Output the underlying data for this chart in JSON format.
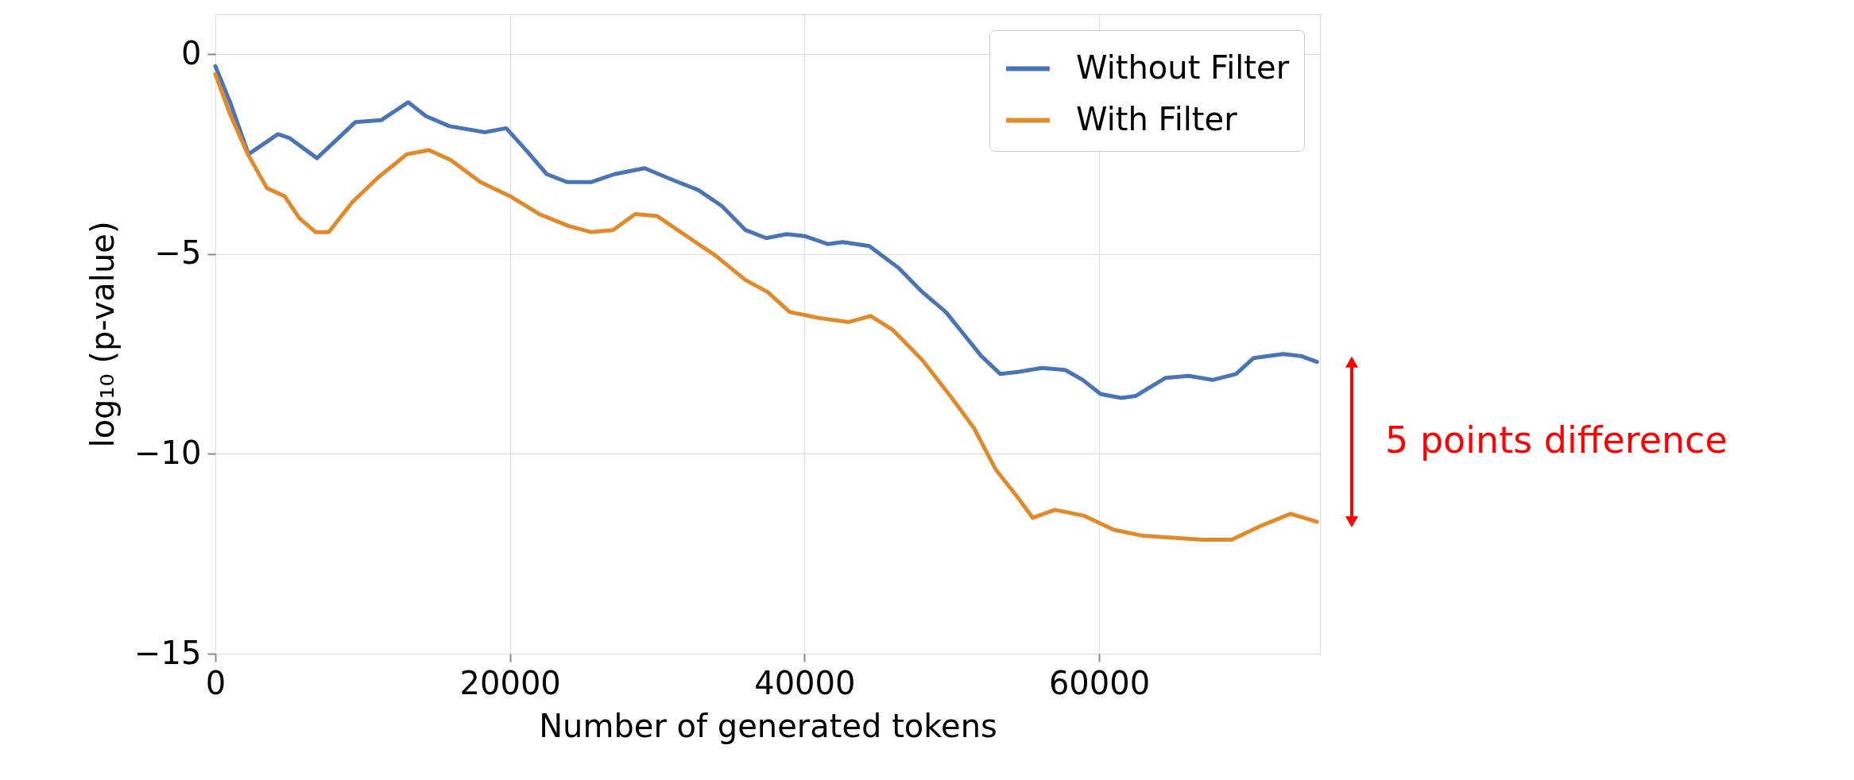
{
  "chart_data": {
    "type": "line",
    "xlabel": "Number of generated tokens",
    "ylabel": "log₁₀ (p-value)",
    "xlim": [
      0,
      75000
    ],
    "xticks": [
      0,
      20000,
      40000,
      60000
    ],
    "ylim": [
      -15,
      1
    ],
    "yticks": [
      -15,
      -10,
      -5,
      0
    ],
    "grid": true,
    "legend": "top right",
    "line_style": "solid",
    "marker": "none",
    "annotations": [
      "5 points difference"
    ],
    "series": [
      {
        "name": "Without Filter",
        "color": "#4a74b4",
        "x": [
          0,
          1000,
          2250,
          4250,
          5050,
          6900,
          9500,
          11250,
          13100,
          14300,
          15900,
          18300,
          19750,
          21100,
          22500,
          23900,
          25500,
          27100,
          29150,
          30750,
          32800,
          34400,
          36000,
          37400,
          38800,
          40000,
          41600,
          42600,
          44400,
          46400,
          48000,
          49600,
          50800,
          52000,
          53300,
          54500,
          56100,
          57700,
          58900,
          60100,
          61500,
          62500,
          64500,
          66100,
          67700,
          69300,
          70500,
          72500,
          73700,
          74800
        ],
        "values": [
          -0.3,
          -1.2,
          -2.5,
          -2.0,
          -2.1,
          -2.6,
          -1.7,
          -1.65,
          -1.2,
          -1.55,
          -1.8,
          -1.95,
          -1.85,
          -2.4,
          -3.0,
          -3.2,
          -3.2,
          -3.0,
          -2.85,
          -3.1,
          -3.4,
          -3.8,
          -4.4,
          -4.6,
          -4.5,
          -4.55,
          -4.75,
          -4.7,
          -4.8,
          -5.35,
          -5.95,
          -6.45,
          -7.0,
          -7.55,
          -8.0,
          -7.95,
          -7.85,
          -7.9,
          -8.15,
          -8.5,
          -8.6,
          -8.55,
          -8.1,
          -8.05,
          -8.15,
          -8.0,
          -7.6,
          -7.5,
          -7.55,
          -7.7
        ]
      },
      {
        "name": "With Filter",
        "color": "#e08a2c",
        "x": [
          0,
          1000,
          2200,
          3500,
          4700,
          5700,
          6800,
          7700,
          9300,
          11000,
          13000,
          14500,
          16000,
          18000,
          20000,
          22000,
          24000,
          25500,
          27000,
          28500,
          30000,
          32000,
          34000,
          36000,
          37500,
          39000,
          41000,
          43000,
          44500,
          46000,
          48000,
          50000,
          51500,
          53000,
          54500,
          55500,
          57000,
          59000,
          61000,
          63000,
          65000,
          67000,
          69000,
          71000,
          73000,
          74800
        ],
        "values": [
          -0.5,
          -1.5,
          -2.5,
          -3.35,
          -3.55,
          -4.1,
          -4.45,
          -4.45,
          -3.7,
          -3.1,
          -2.5,
          -2.4,
          -2.65,
          -3.2,
          -3.55,
          -4.0,
          -4.3,
          -4.45,
          -4.4,
          -4.0,
          -4.05,
          -4.55,
          -5.05,
          -5.65,
          -5.95,
          -6.45,
          -6.6,
          -6.7,
          -6.55,
          -6.9,
          -7.65,
          -8.6,
          -9.35,
          -10.4,
          -11.1,
          -11.6,
          -11.4,
          -11.55,
          -11.9,
          -12.05,
          -12.1,
          -12.15,
          -12.15,
          -11.8,
          -11.5,
          -11.7
        ]
      }
    ]
  }
}
